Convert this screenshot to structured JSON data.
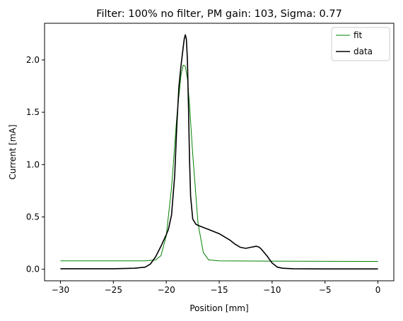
{
  "chart_data": {
    "type": "line",
    "title": "Filter: 100% no filter, PM gain: 103, Sigma: 0.77",
    "xlabel": "Position [mm]",
    "ylabel": "Current [mA]",
    "xlim": [
      -31.5,
      1.5
    ],
    "ylim": [
      -0.11,
      2.35
    ],
    "xticks": [
      -30,
      -25,
      -20,
      -15,
      -10,
      -5,
      0
    ],
    "xtick_labels": [
      "−30",
      "−25",
      "−20",
      "−15",
      "−10",
      "−5",
      "0"
    ],
    "yticks": [
      0.0,
      0.5,
      1.0,
      1.5,
      2.0
    ],
    "ytick_labels": [
      "0.0",
      "0.5",
      "1.0",
      "1.5",
      "2.0"
    ],
    "grid": false,
    "legend_position": "top-right",
    "series": [
      {
        "name": "fit",
        "color": "#008000",
        "line_width": 1,
        "x": [
          -30,
          -25,
          -22,
          -21,
          -20.5,
          -20,
          -19.5,
          -19,
          -18.6,
          -18.4,
          -18.2,
          -18,
          -17.8,
          -17.5,
          -17,
          -16.5,
          -16,
          -15,
          -10,
          -5,
          0
        ],
        "y": [
          0.08,
          0.08,
          0.08,
          0.09,
          0.13,
          0.32,
          0.78,
          1.46,
          1.86,
          1.95,
          1.94,
          1.82,
          1.57,
          1.1,
          0.44,
          0.16,
          0.09,
          0.08,
          0.078,
          0.076,
          0.075
        ]
      },
      {
        "name": "data",
        "color": "#000000",
        "line_width": 1.6,
        "x": [
          -30,
          -25,
          -23,
          -22,
          -21.5,
          -21,
          -20.5,
          -20,
          -19.8,
          -19.5,
          -19.2,
          -19,
          -18.8,
          -18.6,
          -18.4,
          -18.3,
          -18.2,
          -18.1,
          -18,
          -17.9,
          -17.8,
          -17.7,
          -17.5,
          -17.2,
          -17,
          -16.5,
          -16,
          -15.5,
          -15,
          -14.5,
          -14,
          -13.5,
          -13,
          -12.5,
          -12,
          -11.5,
          -11.2,
          -11,
          -10.5,
          -10,
          -9.5,
          -9,
          -8,
          -5,
          0
        ],
        "y": [
          0.005,
          0.005,
          0.01,
          0.02,
          0.05,
          0.12,
          0.22,
          0.33,
          0.38,
          0.52,
          0.9,
          1.38,
          1.75,
          1.95,
          2.12,
          2.2,
          2.24,
          2.2,
          2.0,
          1.55,
          1.05,
          0.7,
          0.48,
          0.43,
          0.42,
          0.4,
          0.38,
          0.36,
          0.34,
          0.31,
          0.28,
          0.24,
          0.21,
          0.2,
          0.21,
          0.22,
          0.21,
          0.19,
          0.13,
          0.06,
          0.02,
          0.01,
          0.005,
          0.003,
          0.003
        ]
      }
    ]
  }
}
